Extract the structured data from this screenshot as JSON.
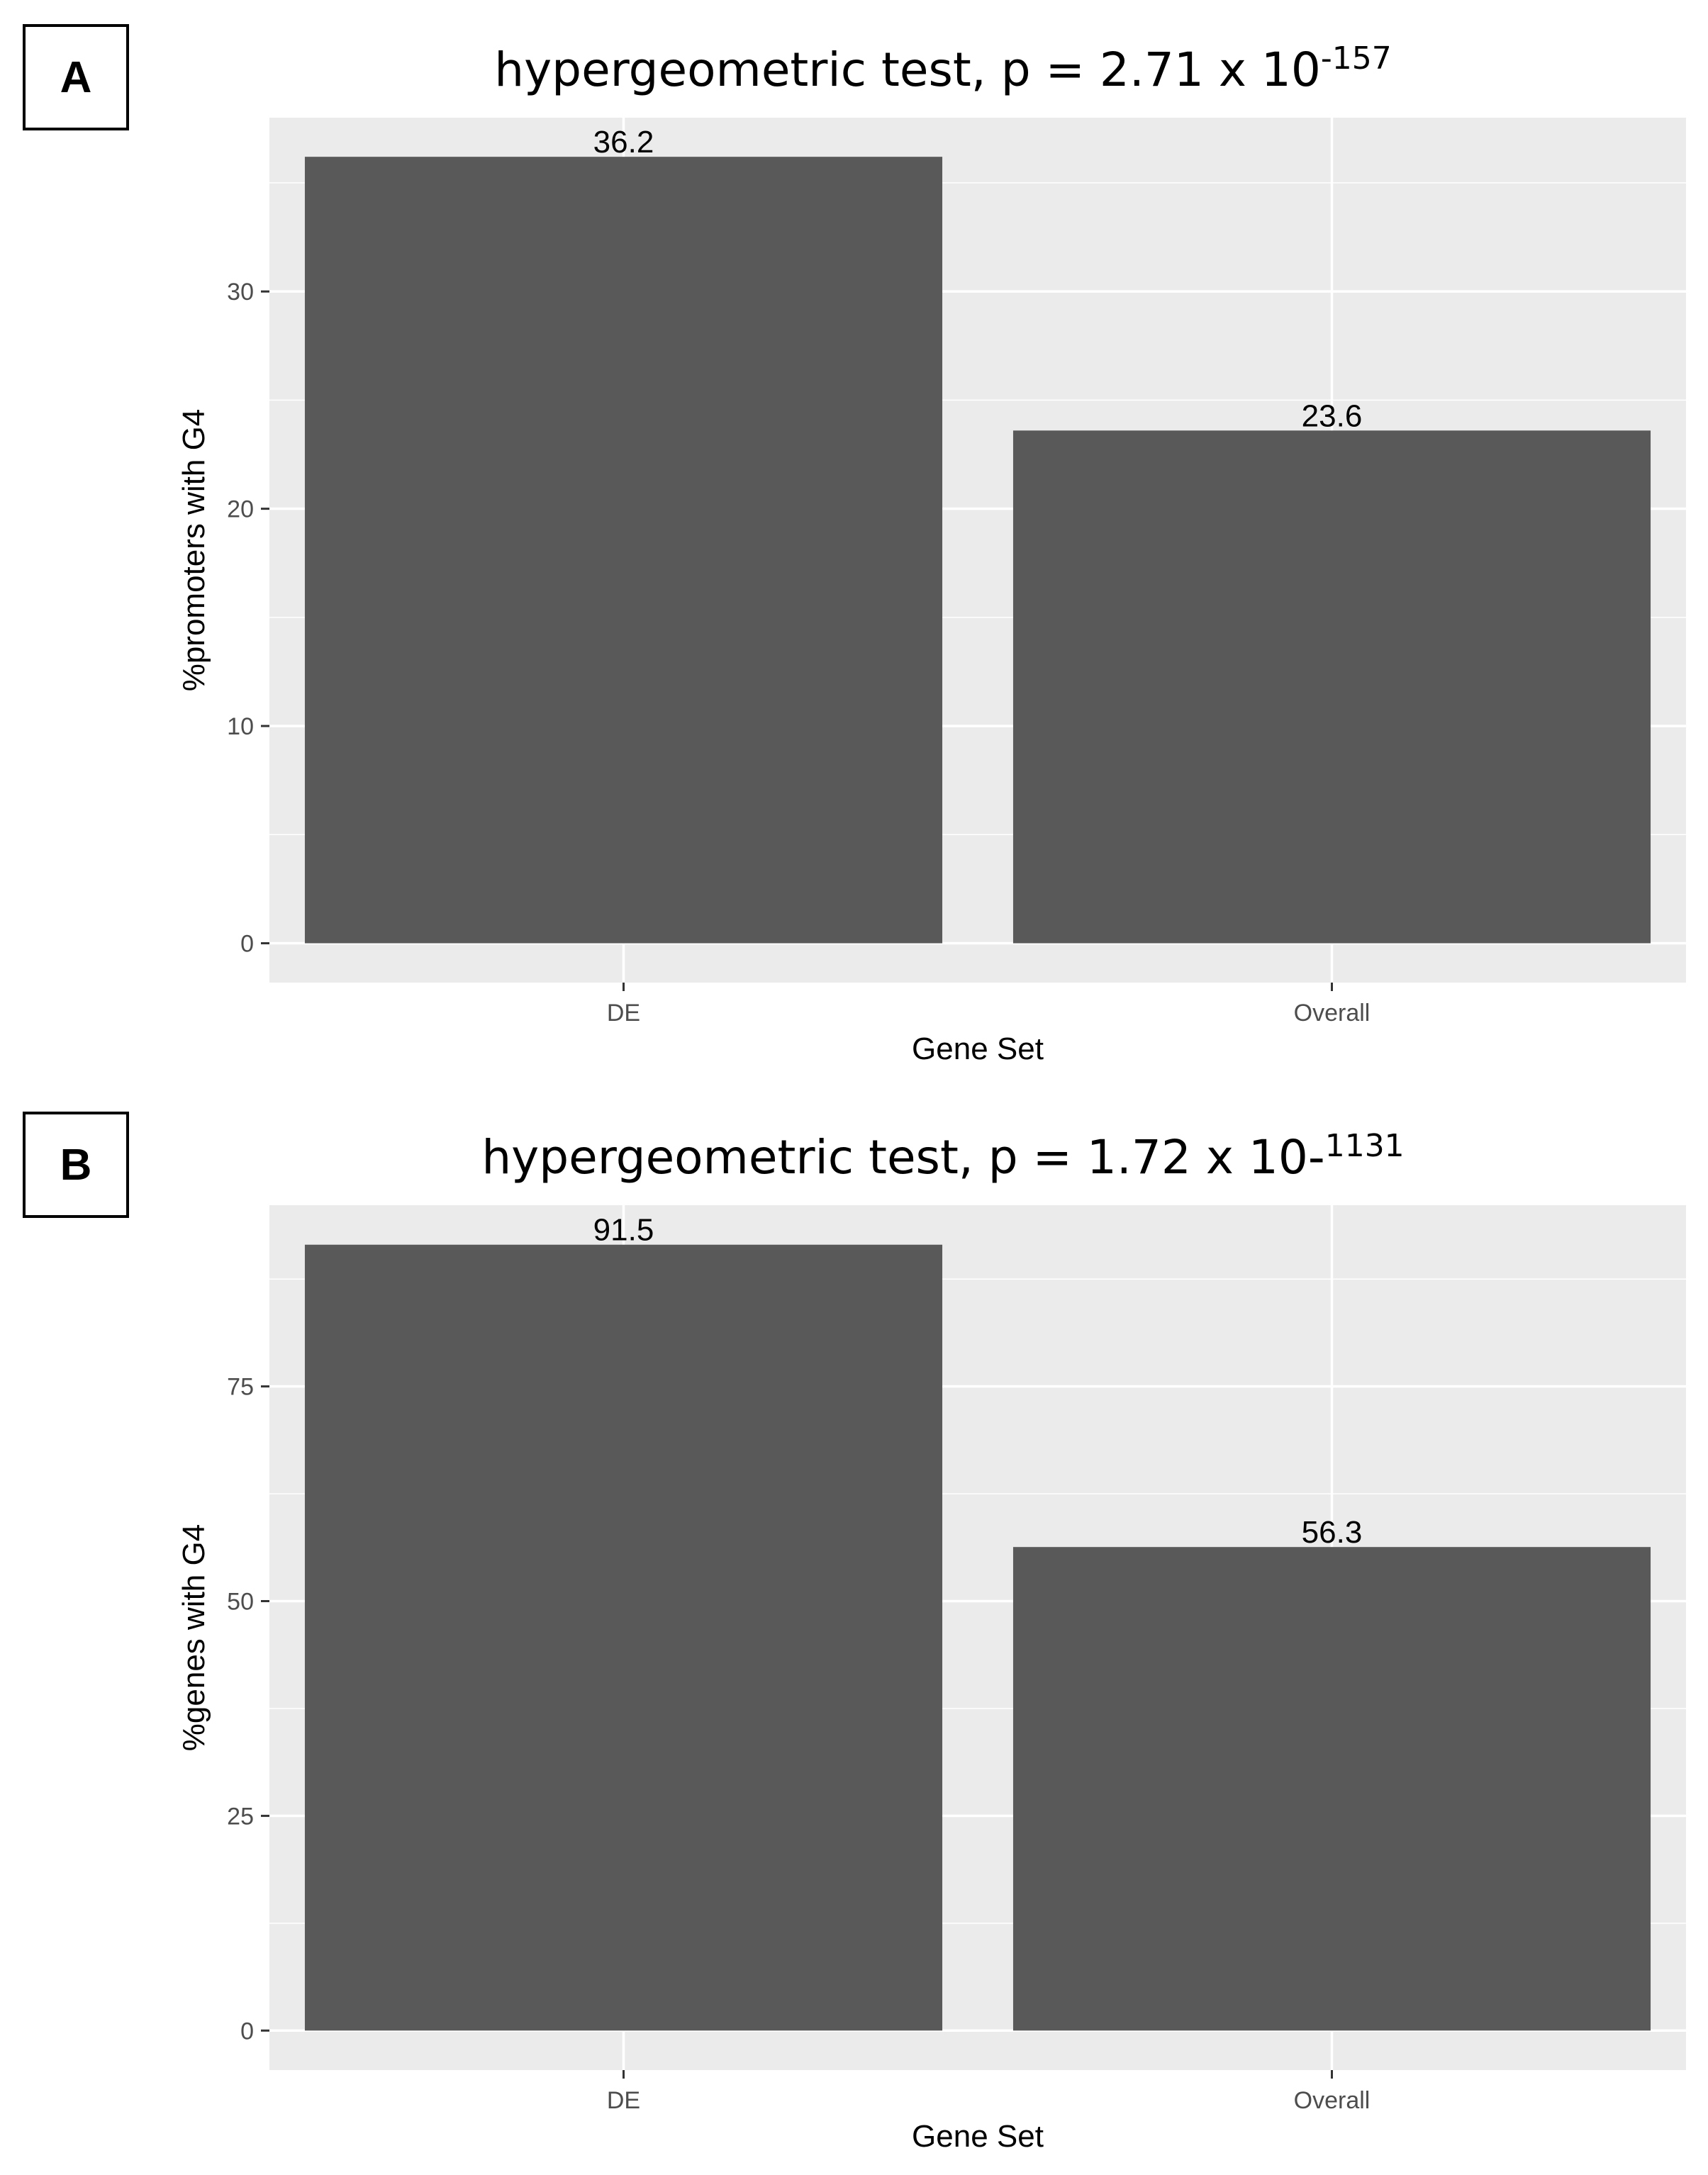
{
  "chart_data": [
    {
      "panel_label": "A",
      "type": "bar",
      "title": "hypergeometric test, p = 2.71 x 10",
      "title_exponent": "-157",
      "xlabel": "Gene Set",
      "ylabel": "%promoters with G4",
      "categories": [
        "DE",
        "Overall"
      ],
      "values": [
        36.2,
        23.6
      ],
      "value_labels": [
        "36.2",
        "23.6"
      ],
      "yticks": [
        0,
        10,
        20,
        30
      ],
      "ylim": [
        -1.81,
        38.0
      ],
      "grid": true,
      "bar_color": "#595959",
      "panel_background": "#ebebeb"
    },
    {
      "panel_label": "B",
      "type": "bar",
      "title": "hypergeometric test, p = 1.72 x 10-",
      "title_exponent": "1131",
      "xlabel": "Gene Set",
      "ylabel": "%genes with G4",
      "categories": [
        "DE",
        "Overall"
      ],
      "values": [
        91.5,
        56.3
      ],
      "value_labels": [
        "91.5",
        "56.3"
      ],
      "yticks": [
        0,
        25,
        50,
        75
      ],
      "ylim": [
        -4.6,
        96.1
      ],
      "grid": true,
      "bar_color": "#595959",
      "panel_background": "#ebebeb"
    }
  ]
}
